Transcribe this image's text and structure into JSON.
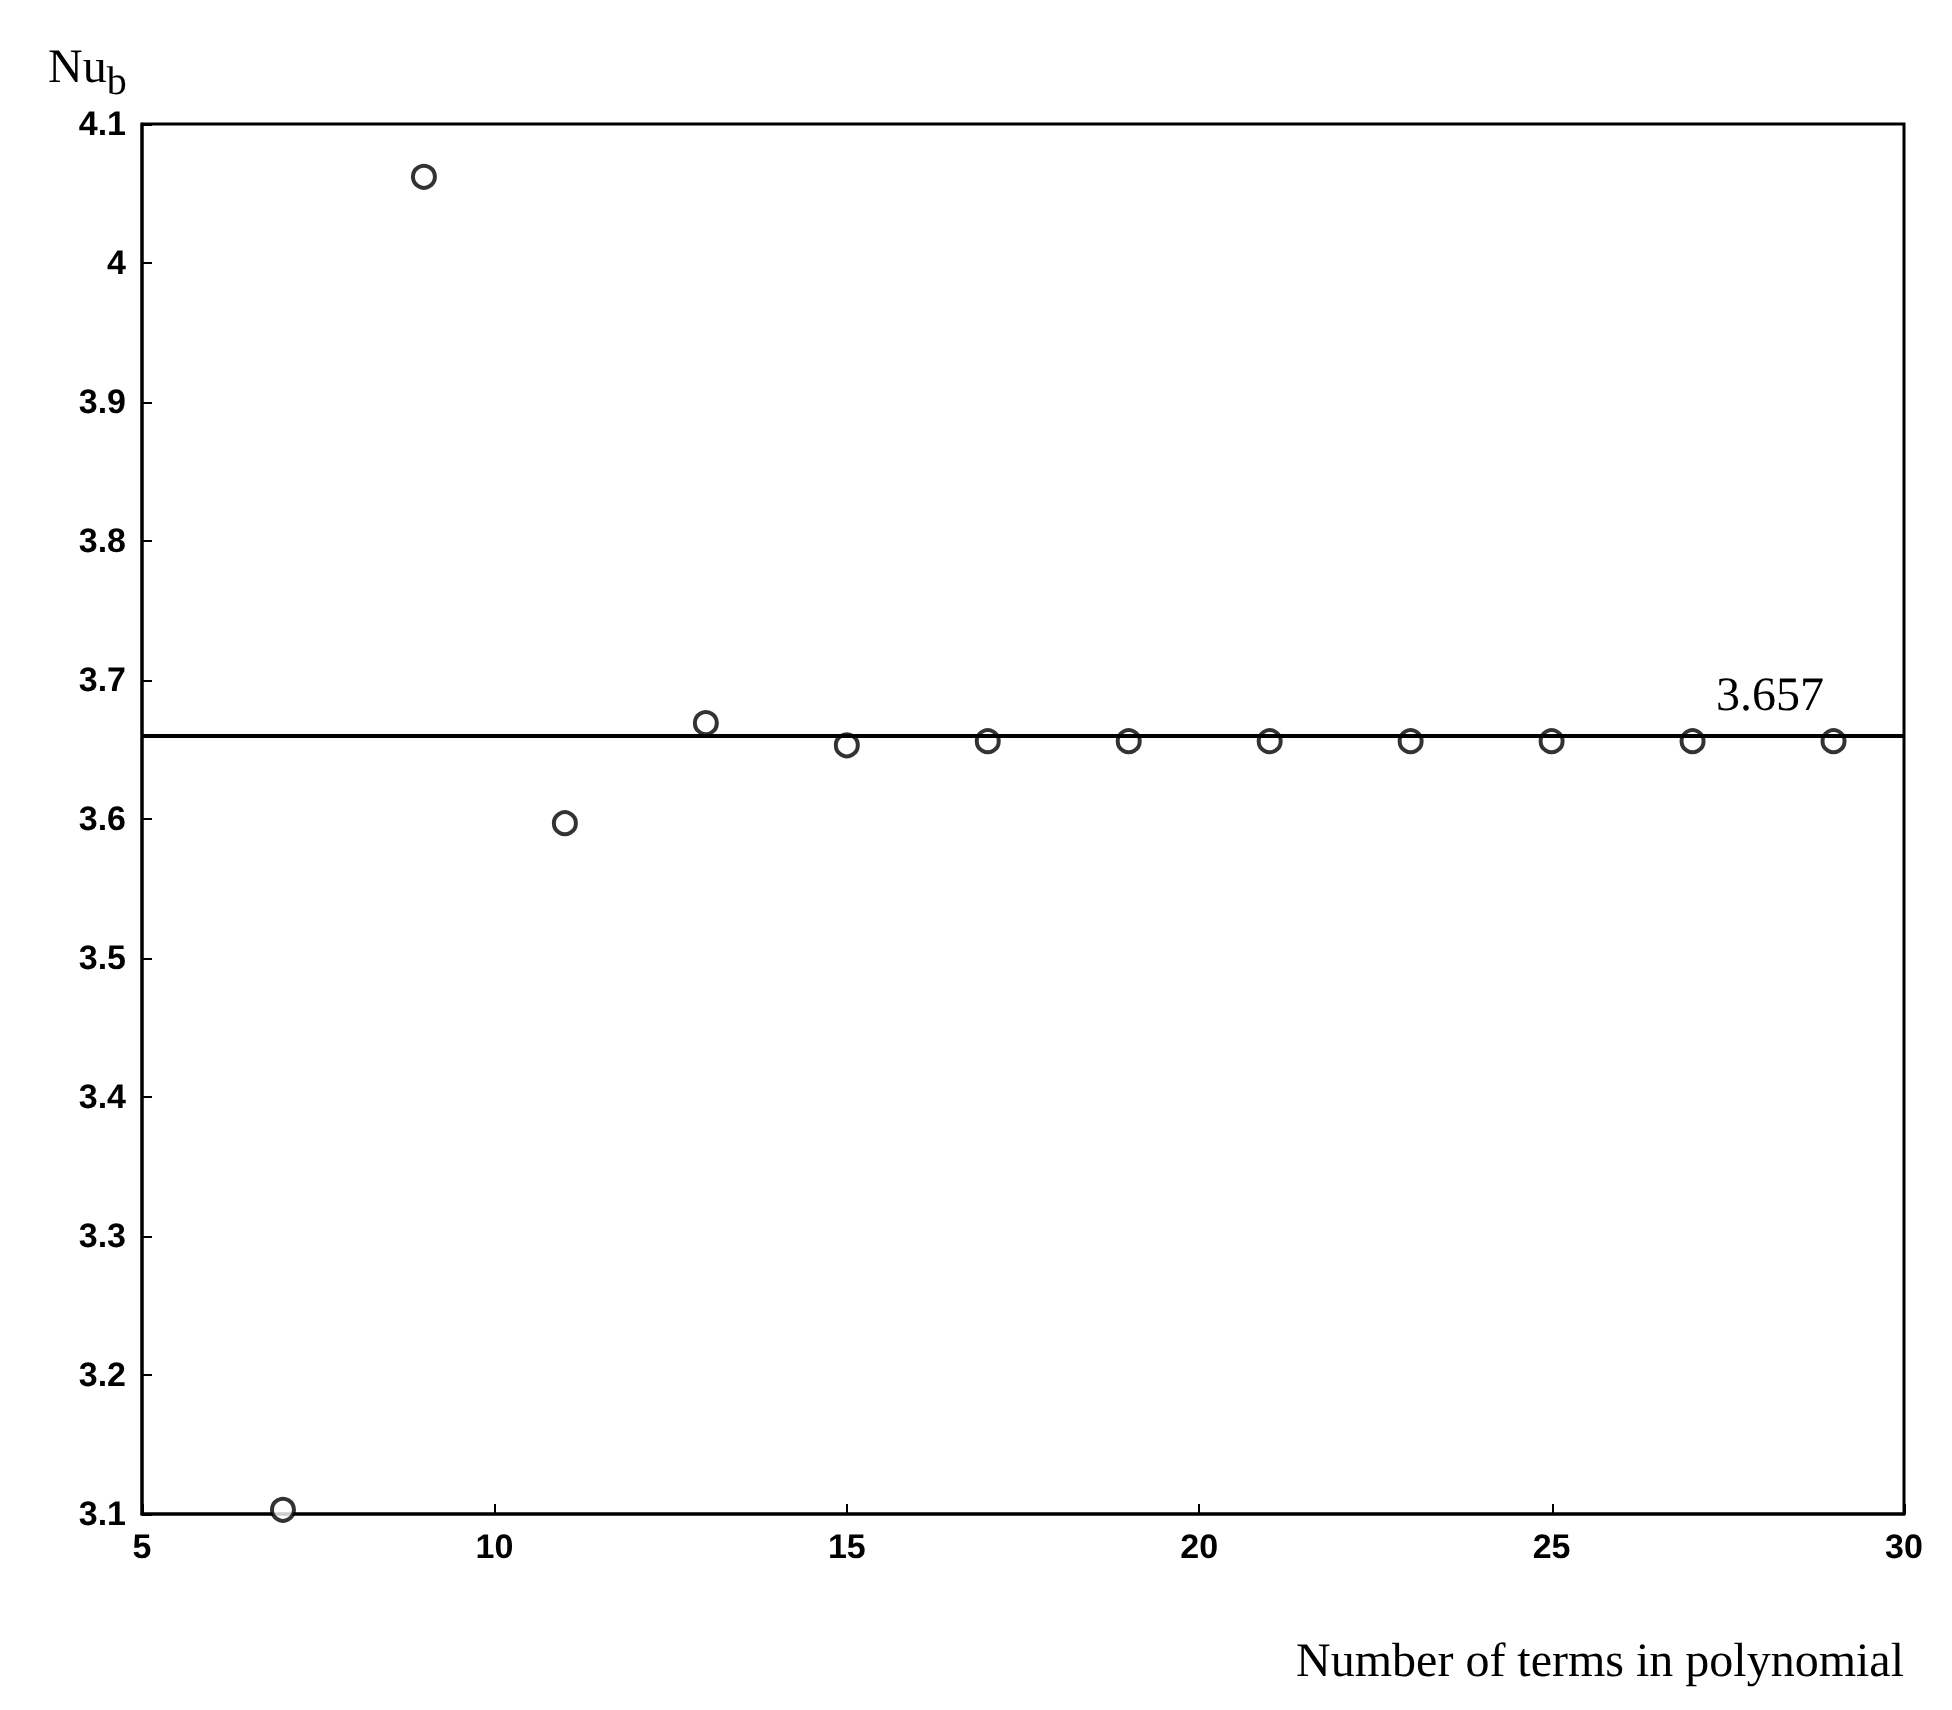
{
  "chart_data": {
    "type": "scatter",
    "xlabel": "Number of terms in polynomial",
    "ylabel": "Nu$_{b}$",
    "x": [
      7,
      9,
      11,
      13,
      15,
      17,
      19,
      21,
      23,
      25,
      27,
      29
    ],
    "values": [
      3.103,
      4.062,
      3.597,
      3.669,
      3.653,
      3.656,
      3.656,
      3.656,
      3.656,
      3.656,
      3.656,
      3.656
    ],
    "color": "#000000",
    "marker": "circle",
    "grid": false,
    "xlim": [
      5,
      30
    ],
    "xticks": [
      5,
      10,
      15,
      20,
      25,
      30
    ],
    "ylim": [
      3.1,
      4.1
    ],
    "yticks": [
      3.1,
      3.2,
      3.3,
      3.4,
      3.5,
      3.6,
      3.7,
      3.8,
      3.9,
      4,
      4.1
    ],
    "ref_lines": [
      {
        "axis": "y",
        "value": 3.657,
        "label": "3.657",
        "color": "#000000",
        "line_style": "solid"
      }
    ]
  }
}
